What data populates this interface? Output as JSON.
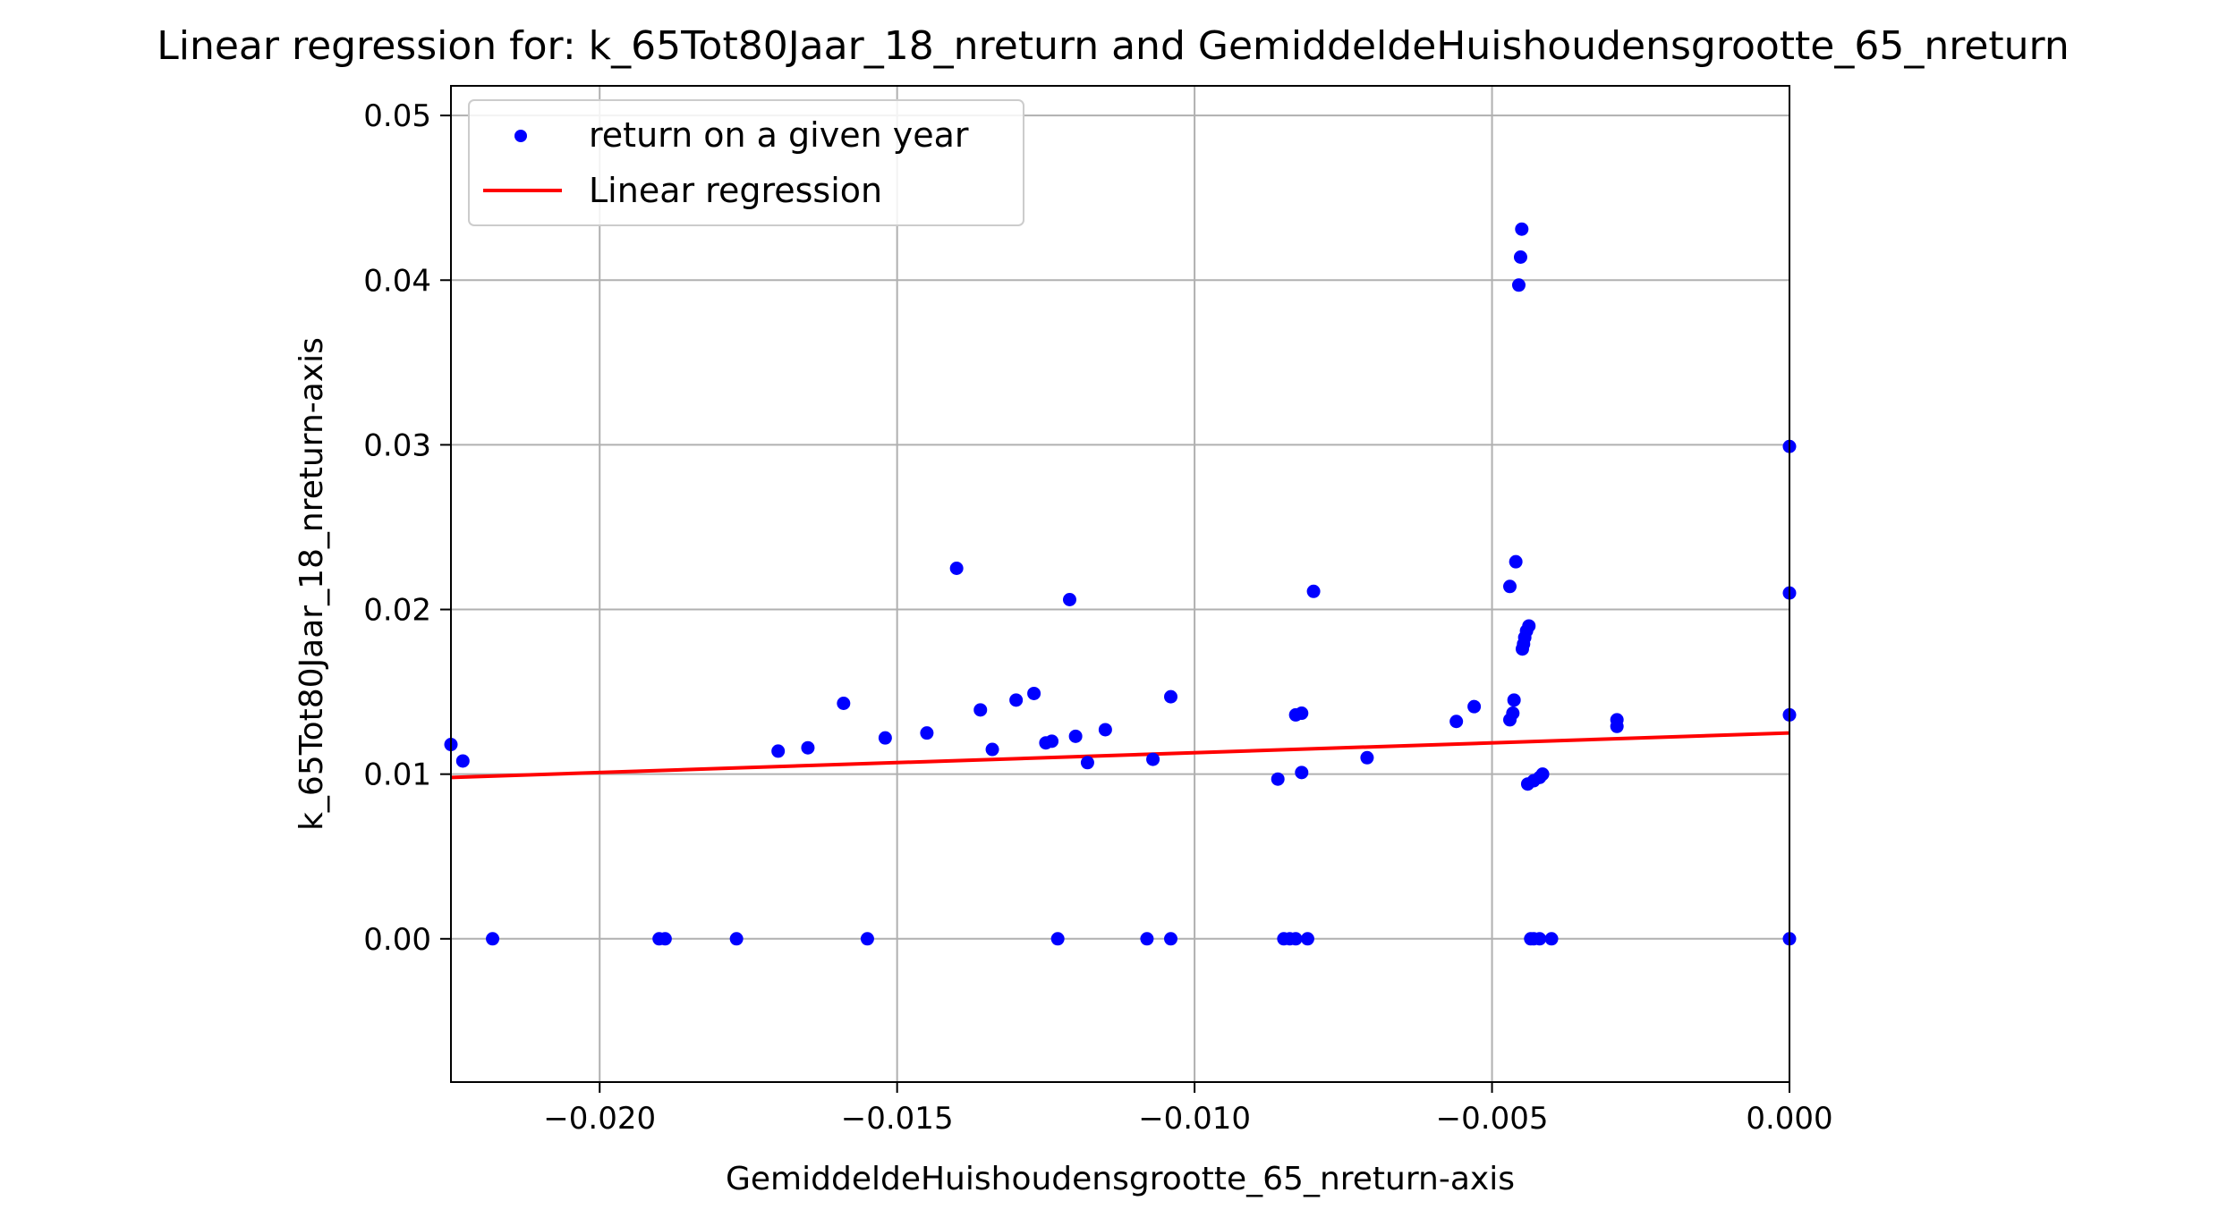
{
  "chart_data": {
    "type": "scatter",
    "title": "Linear regression for: k_65Tot80Jaar_18_nreturn and GemiddeldeHuishoudensgrootte_65_nreturn",
    "xlabel": "GemiddeldeHuishoudensgrootte_65_nreturn-axis",
    "ylabel": "k_65Tot80Jaar_18_nreturn-axis",
    "xlim": [
      -0.0225,
      0.0
    ],
    "ylim": [
      -0.0087,
      0.0518
    ],
    "x_ticks": [
      -0.02,
      -0.015,
      -0.01,
      -0.005,
      0.0
    ],
    "x_tick_labels": [
      "−0.020",
      "−0.015",
      "−0.010",
      "−0.005",
      "0.000"
    ],
    "y_ticks": [
      0.0,
      0.01,
      0.02,
      0.03,
      0.04,
      0.05
    ],
    "y_tick_labels": [
      "0.00",
      "0.01",
      "0.02",
      "0.03",
      "0.04",
      "0.05"
    ],
    "grid": true,
    "legend_position": "top-left",
    "series": [
      {
        "name": "return on a given year",
        "kind": "scatter",
        "color": "#0000ff",
        "points": [
          [
            -0.0225,
            0.0118
          ],
          [
            -0.0223,
            0.0108
          ],
          [
            -0.0218,
            0.0
          ],
          [
            -0.019,
            0.0
          ],
          [
            -0.0189,
            0.0
          ],
          [
            -0.0177,
            0.0
          ],
          [
            -0.017,
            0.0114
          ],
          [
            -0.0165,
            0.0116
          ],
          [
            -0.0159,
            0.0143
          ],
          [
            -0.0155,
            0.0
          ],
          [
            -0.0152,
            0.0122
          ],
          [
            -0.0145,
            0.0125
          ],
          [
            -0.014,
            0.0225
          ],
          [
            -0.0136,
            0.0139
          ],
          [
            -0.0134,
            0.0115
          ],
          [
            -0.013,
            0.0145
          ],
          [
            -0.0127,
            0.0149
          ],
          [
            -0.0125,
            0.0119
          ],
          [
            -0.0124,
            0.012
          ],
          [
            -0.0123,
            0.0
          ],
          [
            -0.0121,
            0.0206
          ],
          [
            -0.012,
            0.0123
          ],
          [
            -0.0118,
            0.0107
          ],
          [
            -0.0115,
            0.0127
          ],
          [
            -0.0108,
            0.0
          ],
          [
            -0.0107,
            0.0109
          ],
          [
            -0.0104,
            0.0147
          ],
          [
            -0.0104,
            0.0
          ],
          [
            -0.0086,
            0.0097
          ],
          [
            -0.0085,
            0.0
          ],
          [
            -0.0084,
            0.0
          ],
          [
            -0.0083,
            0.0136
          ],
          [
            -0.0083,
            0.0
          ],
          [
            -0.0082,
            0.0137
          ],
          [
            -0.0082,
            0.0101
          ],
          [
            -0.0081,
            0.0
          ],
          [
            -0.008,
            0.0211
          ],
          [
            -0.0071,
            0.011
          ],
          [
            -0.0056,
            0.0132
          ],
          [
            -0.0053,
            0.0141
          ],
          [
            -0.0047,
            0.0133
          ],
          [
            -0.0047,
            0.0214
          ],
          [
            -0.00465,
            0.0137
          ],
          [
            -0.00463,
            0.0145
          ],
          [
            -0.0046,
            0.0229
          ],
          [
            -0.00455,
            0.0397
          ],
          [
            -0.00452,
            0.0414
          ],
          [
            -0.0045,
            0.0431
          ],
          [
            -0.00449,
            0.0176
          ],
          [
            -0.00447,
            0.0179
          ],
          [
            -0.00445,
            0.0183
          ],
          [
            -0.00442,
            0.0187
          ],
          [
            -0.0044,
            0.0094
          ],
          [
            -0.00438,
            0.019
          ],
          [
            -0.00435,
            0.0
          ],
          [
            -0.0043,
            0.0096
          ],
          [
            -0.0043,
            0.0
          ],
          [
            -0.0042,
            0.0098
          ],
          [
            -0.0042,
            0.0
          ],
          [
            -0.00415,
            0.01
          ],
          [
            -0.004,
            0.0
          ],
          [
            -0.0029,
            0.0129
          ],
          [
            -0.0029,
            0.0133
          ],
          [
            0.0,
            0.0299
          ],
          [
            0.0,
            0.021
          ],
          [
            0.0,
            0.0136
          ],
          [
            0.0,
            0.0
          ]
        ]
      },
      {
        "name": "Linear regression",
        "kind": "line",
        "color": "#ff0000",
        "points": [
          [
            -0.0225,
            0.0098
          ],
          [
            0.0,
            0.0125
          ]
        ]
      }
    ]
  }
}
